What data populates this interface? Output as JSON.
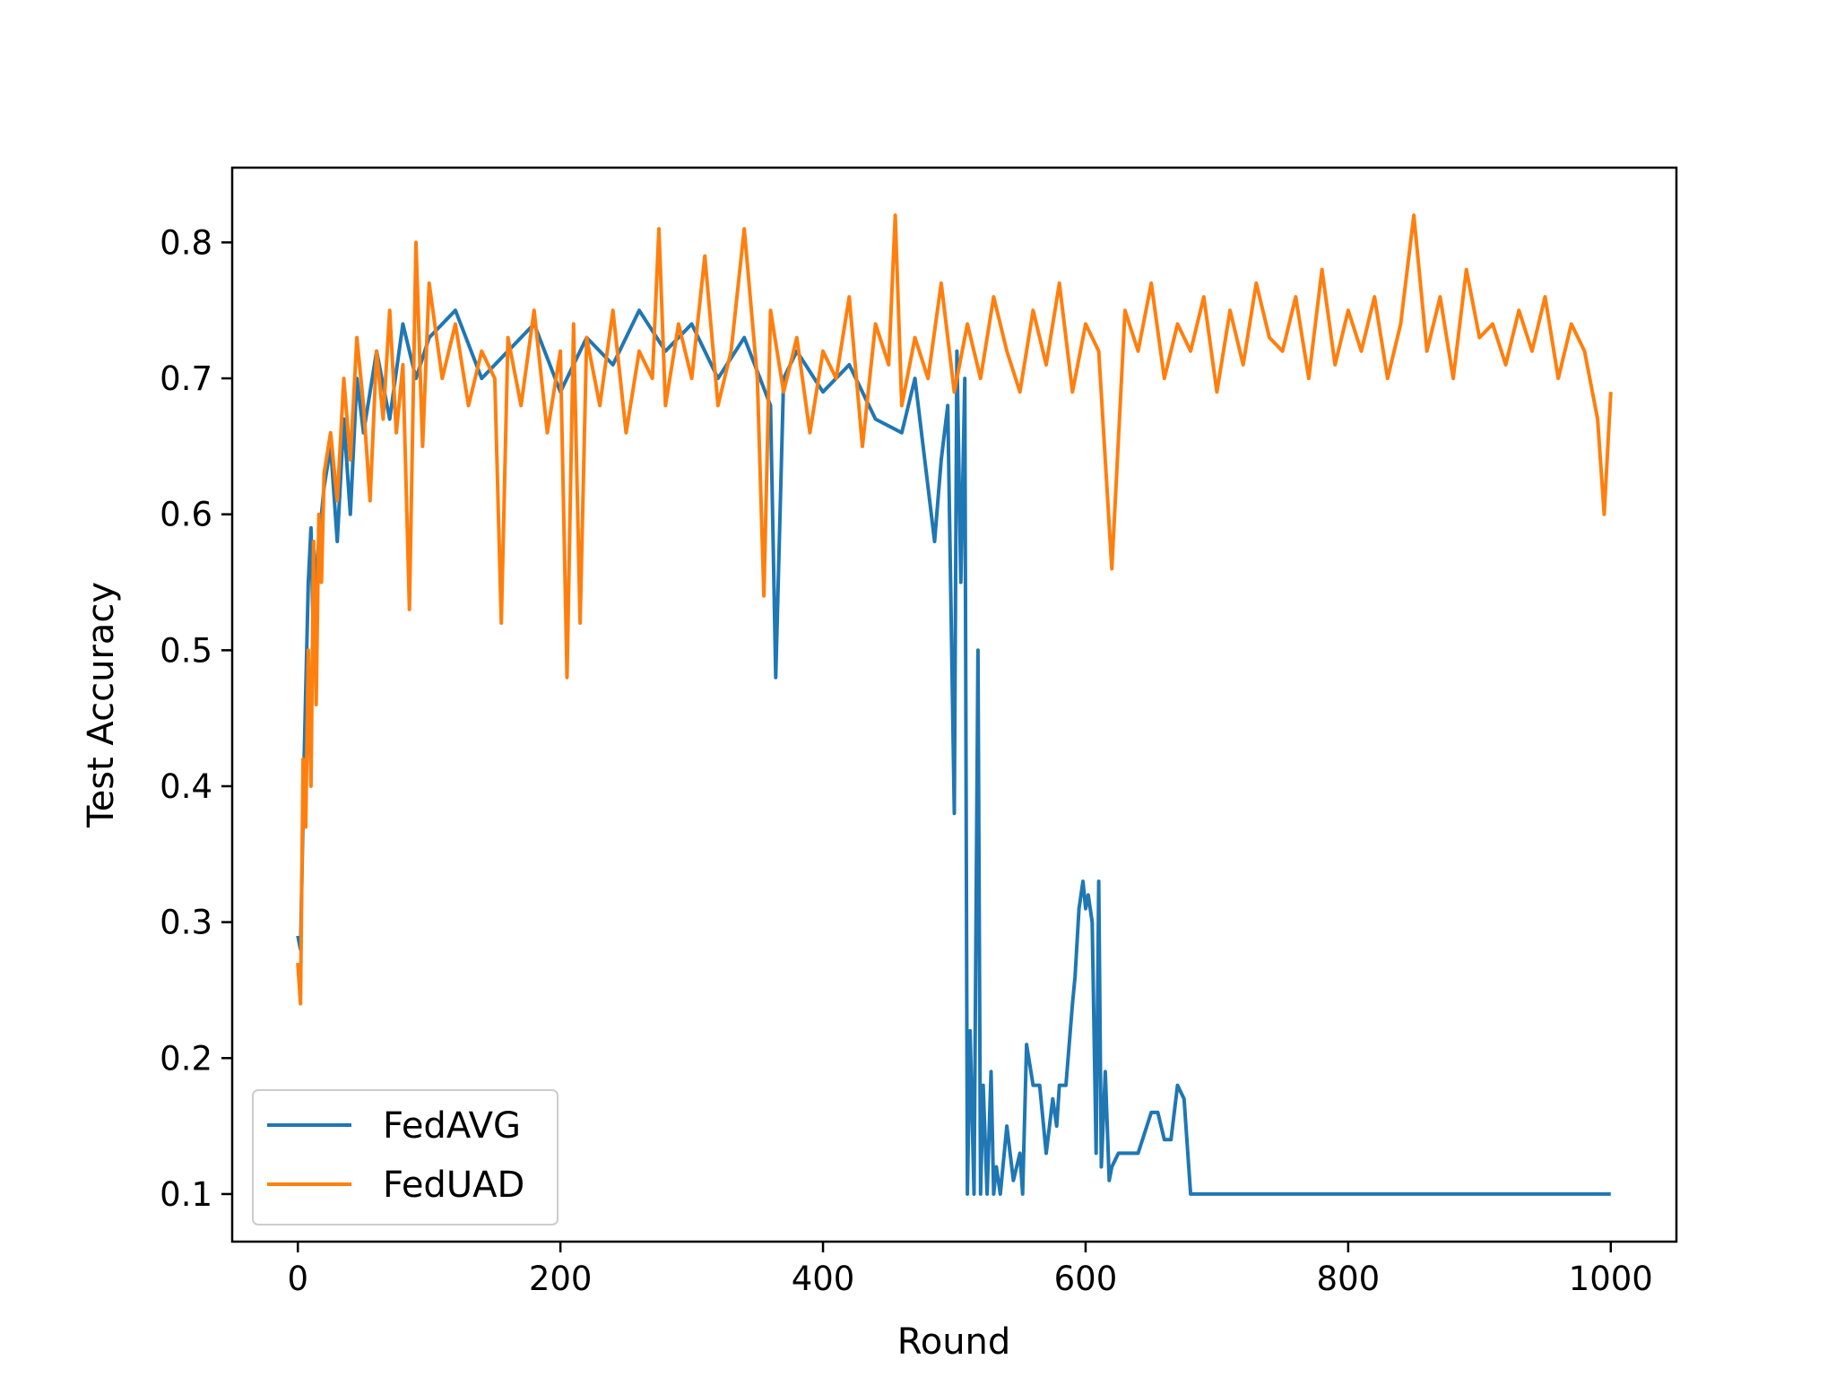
{
  "chart_data": {
    "type": "line",
    "xlabel": "Round",
    "ylabel": "Test Accuracy",
    "xlim": [
      -50,
      1050
    ],
    "ylim": [
      0.065,
      0.855
    ],
    "xticks": [
      0,
      200,
      400,
      600,
      800,
      1000
    ],
    "xtick_labels": [
      "0",
      "200",
      "400",
      "600",
      "800",
      "1000"
    ],
    "yticks": [
      0.1,
      0.2,
      0.3,
      0.4,
      0.5,
      0.6,
      0.7,
      0.8
    ],
    "ytick_labels": [
      "0.1",
      "0.2",
      "0.3",
      "0.4",
      "0.5",
      "0.6",
      "0.7",
      "0.8"
    ],
    "grid": false,
    "legend_position": "lower-left",
    "series": [
      {
        "name": "FedAVG",
        "color": "#1f77b4",
        "x": [
          0,
          2,
          5,
          8,
          10,
          12,
          15,
          18,
          20,
          25,
          30,
          35,
          40,
          45,
          50,
          60,
          70,
          80,
          90,
          100,
          120,
          140,
          160,
          180,
          200,
          220,
          240,
          260,
          280,
          300,
          320,
          340,
          360,
          364,
          370,
          380,
          400,
          420,
          440,
          460,
          470,
          480,
          485,
          490,
          495,
          500,
          502,
          505,
          508,
          510,
          512,
          515,
          518,
          520,
          522,
          525,
          528,
          530,
          532,
          535,
          540,
          545,
          550,
          552,
          555,
          560,
          565,
          570,
          575,
          578,
          580,
          585,
          590,
          592,
          595,
          598,
          600,
          602,
          605,
          608,
          610,
          612,
          615,
          618,
          620,
          625,
          630,
          640,
          650,
          655,
          660,
          665,
          670,
          675,
          680,
          700,
          800,
          900,
          1000
        ],
        "y": [
          0.29,
          0.28,
          0.43,
          0.55,
          0.59,
          0.5,
          0.57,
          0.6,
          0.62,
          0.65,
          0.58,
          0.67,
          0.6,
          0.7,
          0.66,
          0.72,
          0.67,
          0.74,
          0.7,
          0.73,
          0.75,
          0.7,
          0.72,
          0.74,
          0.69,
          0.73,
          0.71,
          0.75,
          0.72,
          0.74,
          0.7,
          0.73,
          0.68,
          0.48,
          0.7,
          0.72,
          0.69,
          0.71,
          0.67,
          0.66,
          0.7,
          0.62,
          0.58,
          0.64,
          0.68,
          0.38,
          0.72,
          0.55,
          0.7,
          0.1,
          0.22,
          0.1,
          0.5,
          0.1,
          0.18,
          0.1,
          0.19,
          0.1,
          0.12,
          0.1,
          0.15,
          0.11,
          0.13,
          0.1,
          0.21,
          0.18,
          0.18,
          0.13,
          0.17,
          0.15,
          0.18,
          0.18,
          0.24,
          0.26,
          0.31,
          0.33,
          0.31,
          0.32,
          0.3,
          0.13,
          0.33,
          0.12,
          0.19,
          0.11,
          0.12,
          0.13,
          0.13,
          0.13,
          0.16,
          0.16,
          0.14,
          0.14,
          0.18,
          0.17,
          0.1,
          0.1,
          0.1,
          0.1,
          0.1
        ]
      },
      {
        "name": "FedUAD",
        "color": "#ff7f0e",
        "x": [
          0,
          2,
          4,
          6,
          8,
          10,
          12,
          14,
          16,
          18,
          20,
          25,
          30,
          35,
          40,
          45,
          50,
          55,
          60,
          65,
          70,
          75,
          80,
          85,
          90,
          95,
          100,
          110,
          120,
          130,
          140,
          150,
          155,
          160,
          170,
          180,
          190,
          200,
          205,
          210,
          215,
          220,
          230,
          240,
          250,
          260,
          270,
          275,
          280,
          290,
          300,
          310,
          320,
          330,
          340,
          350,
          355,
          360,
          370,
          380,
          390,
          400,
          410,
          420,
          430,
          440,
          450,
          455,
          460,
          470,
          480,
          490,
          500,
          510,
          520,
          530,
          540,
          550,
          560,
          570,
          580,
          590,
          600,
          610,
          620,
          630,
          640,
          650,
          660,
          670,
          680,
          690,
          700,
          710,
          720,
          730,
          740,
          750,
          760,
          770,
          780,
          790,
          800,
          810,
          820,
          830,
          840,
          850,
          860,
          870,
          880,
          890,
          900,
          910,
          920,
          930,
          940,
          950,
          960,
          970,
          980,
          990,
          995,
          1000
        ],
        "y": [
          0.27,
          0.24,
          0.42,
          0.37,
          0.5,
          0.4,
          0.58,
          0.46,
          0.6,
          0.55,
          0.63,
          0.66,
          0.61,
          0.7,
          0.64,
          0.73,
          0.68,
          0.61,
          0.72,
          0.67,
          0.75,
          0.66,
          0.71,
          0.53,
          0.8,
          0.65,
          0.77,
          0.7,
          0.74,
          0.68,
          0.72,
          0.7,
          0.52,
          0.73,
          0.68,
          0.75,
          0.66,
          0.72,
          0.48,
          0.74,
          0.52,
          0.73,
          0.68,
          0.75,
          0.66,
          0.72,
          0.7,
          0.81,
          0.68,
          0.74,
          0.7,
          0.79,
          0.68,
          0.72,
          0.81,
          0.7,
          0.54,
          0.75,
          0.69,
          0.73,
          0.66,
          0.72,
          0.7,
          0.76,
          0.65,
          0.74,
          0.71,
          0.82,
          0.68,
          0.73,
          0.7,
          0.77,
          0.69,
          0.74,
          0.7,
          0.76,
          0.72,
          0.69,
          0.75,
          0.71,
          0.77,
          0.69,
          0.74,
          0.72,
          0.56,
          0.75,
          0.72,
          0.77,
          0.7,
          0.74,
          0.72,
          0.76,
          0.69,
          0.75,
          0.71,
          0.77,
          0.73,
          0.72,
          0.76,
          0.7,
          0.78,
          0.71,
          0.75,
          0.72,
          0.76,
          0.7,
          0.74,
          0.82,
          0.72,
          0.76,
          0.7,
          0.78,
          0.73,
          0.74,
          0.71,
          0.75,
          0.72,
          0.76,
          0.7,
          0.74,
          0.72,
          0.67,
          0.6,
          0.69
        ]
      }
    ]
  }
}
